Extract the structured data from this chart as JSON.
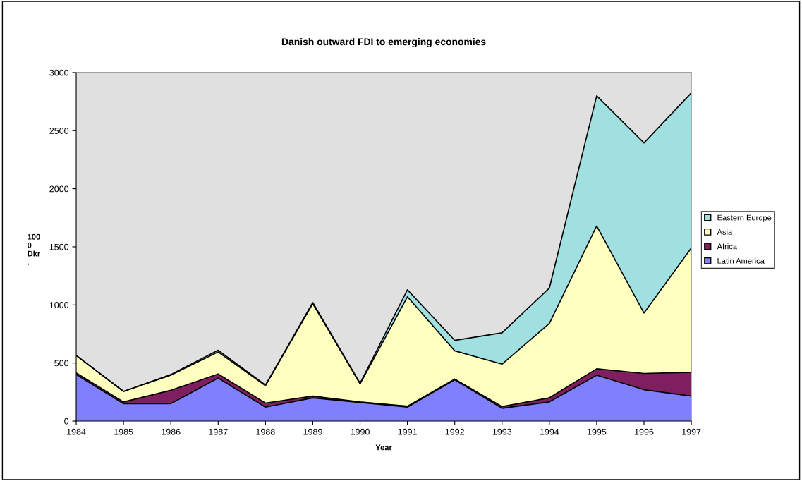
{
  "chart_data": {
    "type": "area",
    "stacked": true,
    "title": "Danish outward FDI to emerging economies",
    "xlabel": "Year",
    "ylabel": "100\n0\nDkr\n.",
    "x": [
      1984,
      1985,
      1986,
      1987,
      1988,
      1989,
      1990,
      1991,
      1992,
      1993,
      1994,
      1995,
      1996,
      1997
    ],
    "series": [
      {
        "name": "Latin America",
        "color": "#8080ff",
        "values": [
          400,
          150,
          150,
          370,
          120,
          200,
          160,
          120,
          355,
          110,
          165,
          395,
          270,
          215
        ]
      },
      {
        "name": "Africa",
        "color": "#7f1f5f",
        "values": [
          15,
          15,
          115,
          35,
          35,
          15,
          5,
          8,
          7,
          15,
          35,
          55,
          140,
          205
        ]
      },
      {
        "name": "Asia",
        "color": "#ffffc0",
        "values": [
          150,
          90,
          130,
          190,
          150,
          795,
          155,
          942,
          243,
          365,
          640,
          1230,
          520,
          1070
        ]
      },
      {
        "name": "Eastern Europe",
        "color": "#a0e0e0",
        "values": [
          0,
          0,
          5,
          15,
          5,
          10,
          5,
          60,
          90,
          270,
          305,
          1120,
          1465,
          1335
        ]
      }
    ],
    "xlim": [
      1984,
      1997
    ],
    "xticks": [
      1984,
      1985,
      1986,
      1987,
      1988,
      1989,
      1990,
      1991,
      1992,
      1993,
      1994,
      1995,
      1996,
      1997
    ],
    "ylim": [
      0,
      3000
    ],
    "yticks": [
      0,
      500,
      1000,
      1500,
      2000,
      2500,
      3000
    ],
    "grid": false,
    "legend": "right"
  }
}
